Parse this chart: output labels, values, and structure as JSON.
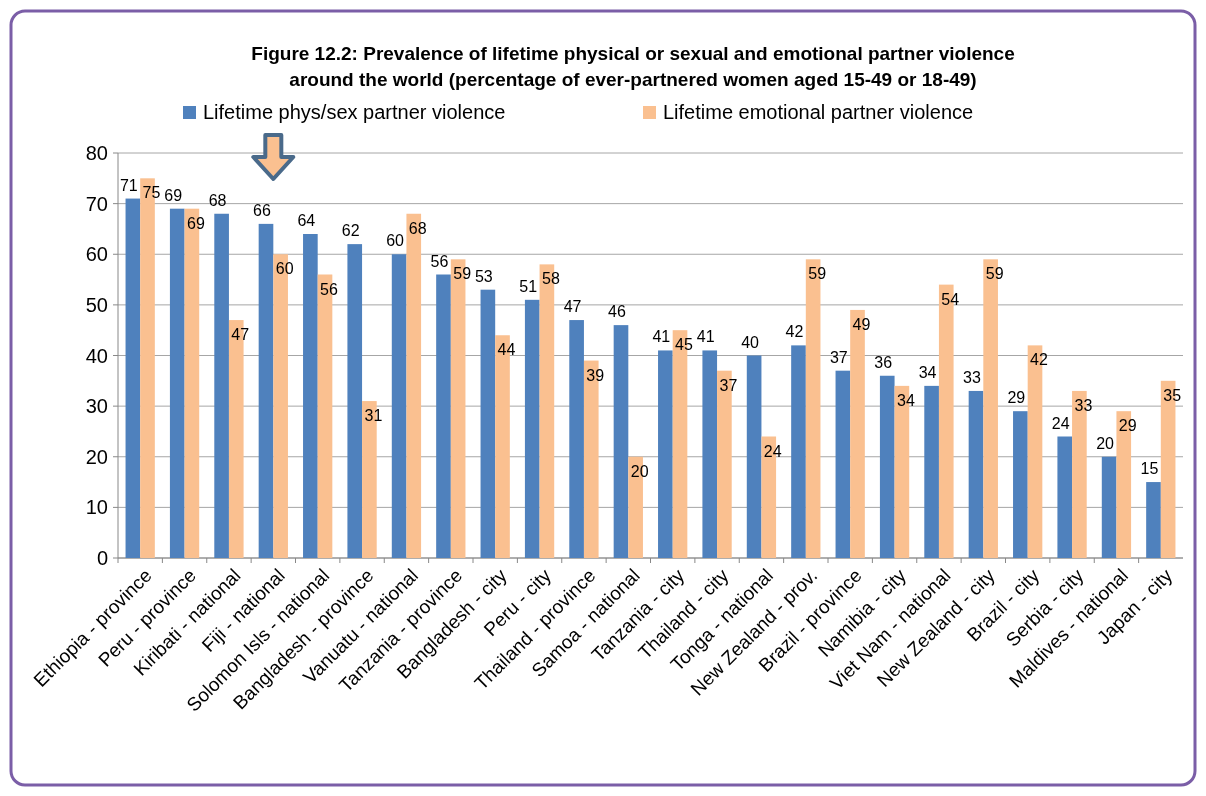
{
  "chart_data": {
    "type": "bar",
    "title": "Figure 12.2: Prevalence of lifetime physical or sexual and emotional partner violence around the world (percentage of ever-partnered women aged 15-49 or 18-49)",
    "categories": [
      "Ethiopia - province",
      "Peru - province",
      "Kiribati - national",
      "Fiji - national",
      "Solomon Isls - national",
      "Bangladesh - province",
      "Vanuatu - national",
      "Tanzania - province",
      "Bangladesh - city",
      "Peru - city",
      "Thailand - province",
      "Samoa - national",
      "Tanzania - city",
      "Thailand - city",
      "Tonga - national",
      "New Zealand - prov.",
      "Brazil - province",
      "Namibia - city",
      "Viet Nam - national",
      "New Zealand - city",
      "Brazil - city",
      "Serbia - city",
      "Maldives - national",
      "Japan - city"
    ],
    "series": [
      {
        "name": "Lifetime phys/sex partner violence",
        "color": "#4f81bd",
        "values": [
          71,
          69,
          68,
          66,
          64,
          62,
          60,
          56,
          53,
          51,
          47,
          46,
          41,
          41,
          40,
          42,
          37,
          36,
          34,
          33,
          29,
          24,
          20,
          15
        ]
      },
      {
        "name": "Lifetime  emotional partner violence",
        "color": "#fac090",
        "values": [
          75,
          69,
          47,
          60,
          56,
          31,
          68,
          59,
          44,
          58,
          39,
          20,
          45,
          37,
          24,
          59,
          49,
          34,
          54,
          59,
          42,
          33,
          29,
          35
        ]
      }
    ],
    "ylim": [
      0,
      80
    ],
    "yticks": [
      0,
      10,
      20,
      30,
      40,
      50,
      60,
      70,
      80
    ],
    "grid": "y",
    "legend": "top",
    "data_labels": true
  }
}
